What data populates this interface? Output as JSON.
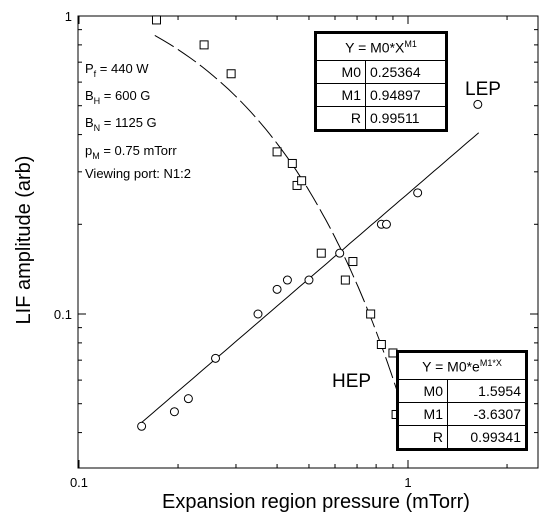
{
  "chart_data": {
    "type": "scatter",
    "xlabel": "Expansion region pressure (mTorr)",
    "ylabel": "LIF amplitude (arb)",
    "x_scale": "log",
    "y_scale": "log",
    "xlim": [
      0.1,
      2.0
    ],
    "ylim": [
      0.035,
      1.0
    ],
    "x_ticks": [
      0.1,
      1
    ],
    "x_tick_labels": [
      "0.1",
      "1"
    ],
    "y_ticks": [
      0.1,
      1
    ],
    "y_tick_labels": [
      "0.1",
      "1"
    ],
    "grid": false,
    "series": [
      {
        "name": "LEP",
        "marker": "circle",
        "x": [
          0.155,
          0.195,
          0.215,
          0.26,
          0.35,
          0.4,
          0.43,
          0.5,
          0.62,
          0.83,
          0.86,
          1.07,
          1.63
        ],
        "y": [
          0.042,
          0.047,
          0.052,
          0.071,
          0.1,
          0.121,
          0.13,
          0.13,
          0.16,
          0.2,
          0.2,
          0.255,
          0.505
        ]
      },
      {
        "name": "HEP",
        "marker": "square",
        "x": [
          0.172,
          0.24,
          0.29,
          0.4,
          0.445,
          0.46,
          0.475,
          0.545,
          0.645,
          0.68,
          0.77,
          0.83,
          0.9,
          0.92
        ],
        "y": [
          0.97,
          0.8,
          0.64,
          0.35,
          0.32,
          0.27,
          0.28,
          0.16,
          0.13,
          0.15,
          0.1,
          0.079,
          0.074,
          0.046
        ]
      }
    ],
    "fits": [
      {
        "series": "LEP",
        "equation_lhs": "Y = M0*X",
        "equation_sup": "M1",
        "params": [
          {
            "key": "M0",
            "value": "0.25364"
          },
          {
            "key": "M1",
            "value": "0.94897"
          },
          {
            "key": "R",
            "value": "0.99511"
          }
        ],
        "M0": 0.25364,
        "M1": 0.94897
      },
      {
        "series": "HEP",
        "equation_lhs": "Y = M0*e",
        "equation_sup": "M1*X",
        "params": [
          {
            "key": "M0",
            "value": "1.5954"
          },
          {
            "key": "M1",
            "value": "-3.6307"
          },
          {
            "key": "R",
            "value": "0.99341"
          }
        ],
        "M0": 1.5954,
        "M1": -3.6307
      }
    ],
    "annotation_lines": [
      {
        "main": "P",
        "sub": "f",
        "rest": " = 440 W"
      },
      {
        "main": "B",
        "sub": "H",
        "rest": " = 600 G"
      },
      {
        "main": "B",
        "sub": "N",
        "rest": " = 1125 G"
      },
      {
        "main": "p",
        "sub": "M",
        "rest": " = 0.75 mTorr"
      },
      {
        "main": "Viewing port:  N1:2",
        "sub": "",
        "rest": ""
      }
    ],
    "series_labels": {
      "LEP": "LEP",
      "HEP": "HEP"
    }
  }
}
